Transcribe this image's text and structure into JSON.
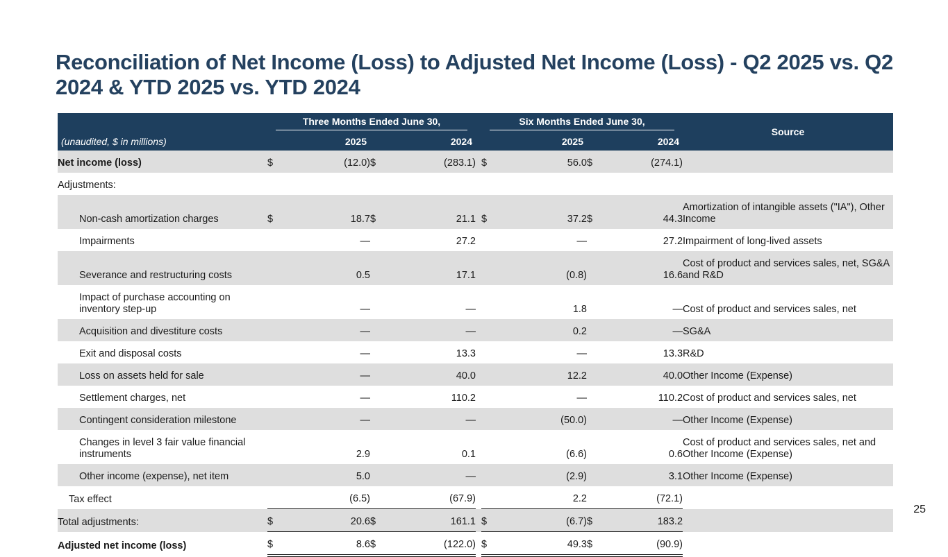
{
  "title": "Reconciliation of Net Income (Loss) to Adjusted Net Income (Loss) - Q2 2025 vs. Q2 2024 & YTD 2025 vs. YTD 2024",
  "page_number": "25",
  "table": {
    "unaudited_label": "(unaudited, $ in millions)",
    "group_three_months": "Three Months Ended June 30,",
    "group_six_months": "Six Months Ended June 30,",
    "years": [
      "2025",
      "2024",
      "2025",
      "2024"
    ],
    "source_header": "Source",
    "rows": [
      {
        "label": "Net income (loss)",
        "d1": "$",
        "v1": "(12.0)",
        "d2": "$",
        "v2": "(283.1)",
        "d3": "$",
        "v3": "56.0",
        "d4": "$",
        "v4": "(274.1)",
        "source": ""
      },
      {
        "label": "Adjustments:",
        "d1": "",
        "v1": "",
        "d2": "",
        "v2": "",
        "d3": "",
        "v3": "",
        "d4": "",
        "v4": "",
        "source": ""
      },
      {
        "label": "Non-cash amortization charges",
        "d1": "$",
        "v1": "18.7",
        "d2": "$",
        "v2": "21.1",
        "d3": "$",
        "v3": "37.2",
        "d4": "$",
        "v4": "44.3",
        "source": "Amortization of intangible assets (\"IA\"), Other Income"
      },
      {
        "label": "Impairments",
        "d1": "",
        "v1": "—",
        "d2": "",
        "v2": "27.2",
        "d3": "",
        "v3": "—",
        "d4": "",
        "v4": "27.2",
        "source": "Impairment of long-lived assets"
      },
      {
        "label": "Severance and restructuring costs",
        "d1": "",
        "v1": "0.5",
        "d2": "",
        "v2": "17.1",
        "d3": "",
        "v3": "(0.8)",
        "d4": "",
        "v4": "16.6",
        "source": "Cost of product and services sales, net, SG&A and R&D"
      },
      {
        "label": "Impact of purchase accounting on inventory step-up",
        "d1": "",
        "v1": "—",
        "d2": "",
        "v2": "—",
        "d3": "",
        "v3": "1.8",
        "d4": "",
        "v4": "—",
        "source": "Cost of product and services sales, net"
      },
      {
        "label": "Acquisition and divestiture costs",
        "d1": "",
        "v1": "—",
        "d2": "",
        "v2": "—",
        "d3": "",
        "v3": "0.2",
        "d4": "",
        "v4": "—",
        "source": "SG&A"
      },
      {
        "label": "Exit and disposal costs",
        "d1": "",
        "v1": "—",
        "d2": "",
        "v2": "13.3",
        "d3": "",
        "v3": "—",
        "d4": "",
        "v4": "13.3",
        "source": "R&D"
      },
      {
        "label": "Loss on assets held for sale",
        "d1": "",
        "v1": "—",
        "d2": "",
        "v2": "40.0",
        "d3": "",
        "v3": "12.2",
        "d4": "",
        "v4": "40.0",
        "source": "Other Income (Expense)"
      },
      {
        "label": "Settlement charges, net",
        "d1": "",
        "v1": "—",
        "d2": "",
        "v2": "110.2",
        "d3": "",
        "v3": "—",
        "d4": "",
        "v4": "110.2",
        "source": "Cost of product and services sales, net"
      },
      {
        "label": "Contingent consideration milestone",
        "d1": "",
        "v1": "—",
        "d2": "",
        "v2": "—",
        "d3": "",
        "v3": "(50.0)",
        "d4": "",
        "v4": "—",
        "source": "Other Income (Expense)"
      },
      {
        "label": "Changes in level 3 fair value financial instruments",
        "d1": "",
        "v1": "2.9",
        "d2": "",
        "v2": "0.1",
        "d3": "",
        "v3": "(6.6)",
        "d4": "",
        "v4": "0.6",
        "source": "Cost of product and services sales, net and Other Income (Expense)"
      },
      {
        "label": "Other income (expense), net item",
        "d1": "",
        "v1": "5.0",
        "d2": "",
        "v2": "—",
        "d3": "",
        "v3": "(2.9)",
        "d4": "",
        "v4": "3.1",
        "source": "Other Income (Expense)"
      },
      {
        "label": "Tax effect",
        "d1": "",
        "v1": "(6.5)",
        "d2": "",
        "v2": "(67.9)",
        "d3": "",
        "v3": "2.2",
        "d4": "",
        "v4": "(72.1)",
        "source": ""
      },
      {
        "label": "Total adjustments:",
        "d1": "$",
        "v1": "20.6",
        "d2": "$",
        "v2": "161.1",
        "d3": "$",
        "v3": "(6.7)",
        "d4": "$",
        "v4": "183.2",
        "source": ""
      },
      {
        "label": "Adjusted net income (loss)",
        "d1": "$",
        "v1": "8.6",
        "d2": "$",
        "v2": "(122.0)",
        "d3": "$",
        "v3": "49.3",
        "d4": "$",
        "v4": "(90.9)",
        "source": ""
      }
    ]
  }
}
